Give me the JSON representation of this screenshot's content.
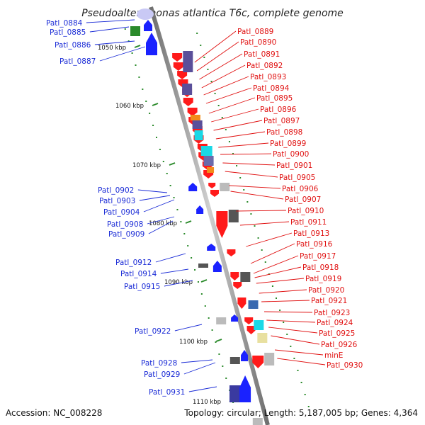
{
  "title": "Pseudoalteromonas atlantica T6c, complete genome",
  "footer": {
    "accession": "Accession: NC_008228",
    "summary": "Topology: circular; Length: 5,187,005 bp; Genes: 4,364"
  },
  "scale": {
    "ticks": [
      "1050 kbp",
      "1060 kbp",
      "1070 kbp",
      "1080 kbp",
      "1090 kbp",
      "1100 kbp",
      "1110 kbp"
    ]
  },
  "colors": {
    "backbone": "#8f8f8f",
    "neg_label": "#1a2bd6",
    "pos_label": "#e01010",
    "tick": "#2a8a2a"
  },
  "genes_neg": [
    "Patl_0884",
    "Patl_0885",
    "Patl_0886",
    "Patl_0887",
    "Patl_0902",
    "Patl_0903",
    "Patl_0904",
    "Patl_0908",
    "Patl_0909",
    "Patl_0912",
    "Patl_0914",
    "Patl_0915",
    "Patl_0922",
    "Patl_0928",
    "Patl_0929",
    "Patl_0931"
  ],
  "genes_pos": [
    "Patl_0889",
    "Patl_0890",
    "Patl_0891",
    "Patl_0892",
    "Patl_0893",
    "Patl_0894",
    "Patl_0895",
    "Patl_0896",
    "Patl_0897",
    "Patl_0898",
    "Patl_0899",
    "Patl_0900",
    "Patl_0901",
    "Patl_0905",
    "Patl_0906",
    "Patl_0907",
    "Patl_0910",
    "Patl_0911",
    "Patl_0913",
    "Patl_0916",
    "Patl_0917",
    "Patl_0918",
    "Patl_0919",
    "Patl_0920",
    "Patl_0921",
    "Patl_0923",
    "Patl_0924",
    "Patl_0925",
    "Patl_0926",
    "minE",
    "Patl_0930"
  ]
}
